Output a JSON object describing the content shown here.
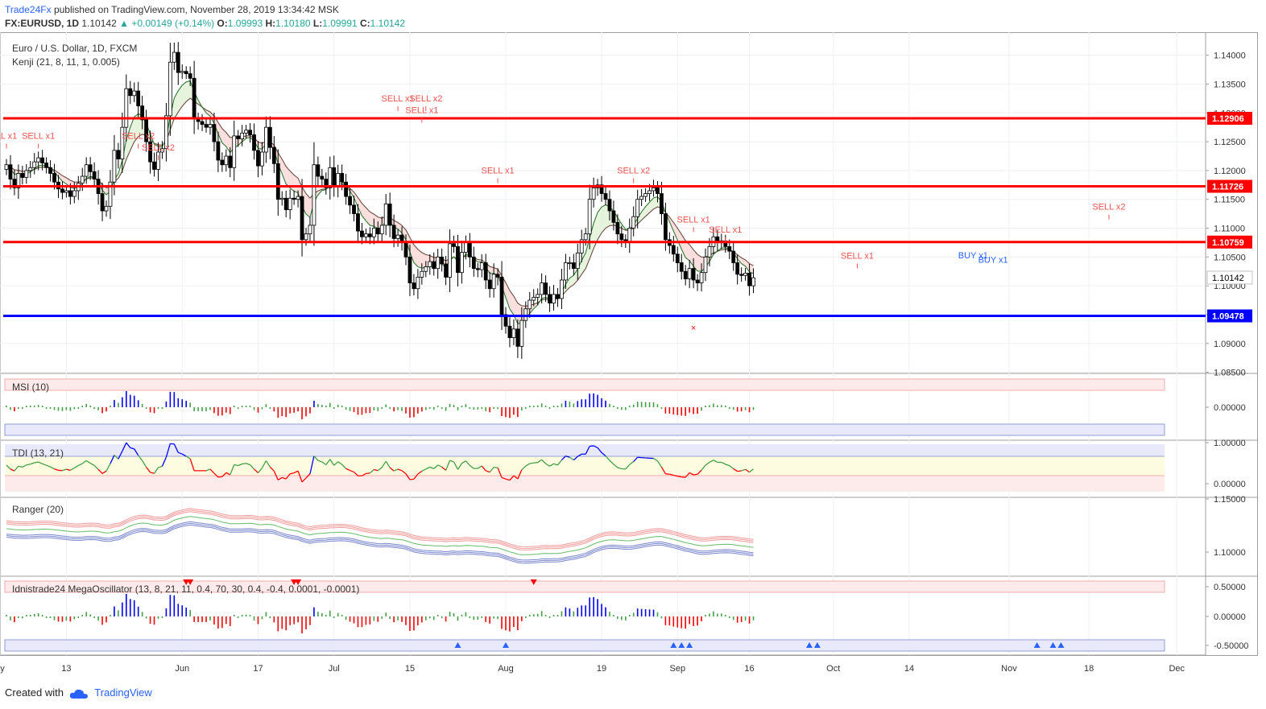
{
  "header": {
    "brand": "Trade24Fx",
    "published": "published on TradingView.com, November 28, 2019 13:34:42 MSK",
    "symbol": "FX:EURUSD, 1D",
    "last": "1.10142",
    "change": "+0.00149 (+0.14%)",
    "o_label": "O:",
    "o": "1.09993",
    "h_label": "H:",
    "h": "1.10180",
    "l_label": "L:",
    "l": "1.09991",
    "c_label": "C:",
    "c": "1.10142"
  },
  "footer": {
    "created_with": "Created with",
    "brand": "TradingView"
  },
  "colors": {
    "up": "#26a69a",
    "red": "#ff0000",
    "blue": "#0000ff",
    "pink": "#ef5350",
    "buy": "#2962ff"
  },
  "chart_data": [
    {
      "type": "candlestick",
      "title": "Euro / U.S. Dollar, 1D, FXCM",
      "indicator": "Kenji (21, 8, 11, 1, 0.005)",
      "x_ticks": [
        "ay",
        "13",
        "Jun",
        "17",
        "Jul",
        "15",
        "Aug",
        "19",
        "Sep",
        "16",
        "Oct",
        "14",
        "Nov",
        "18",
        "Dec"
      ],
      "y_ticks": [
        "1.14000",
        "1.13500",
        "1.13000",
        "1.12500",
        "1.12000",
        "1.11500",
        "1.11000",
        "1.10500",
        "1.10000",
        "1.09500",
        "1.09000",
        "1.08500"
      ],
      "ylim": [
        1.0848,
        1.144
      ],
      "levels": [
        {
          "value": 1.12906,
          "label": "1.12906",
          "color": "red"
        },
        {
          "value": 1.11726,
          "label": "1.11726",
          "color": "red"
        },
        {
          "value": 1.10759,
          "label": "1.10759",
          "color": "red"
        },
        {
          "value": 1.09478,
          "label": "1.09478",
          "color": "blue"
        }
      ],
      "last_price": {
        "value": 1.10142,
        "label": "1.10142"
      },
      "closes": [
        1.121,
        1.1185,
        1.117,
        1.1195,
        1.1188,
        1.12,
        1.1205,
        1.1215,
        1.1222,
        1.1213,
        1.1205,
        1.1195,
        1.118,
        1.1168,
        1.1162,
        1.1165,
        1.1155,
        1.1165,
        1.1178,
        1.119,
        1.121,
        1.1198,
        1.1185,
        1.116,
        1.113,
        1.1138,
        1.118,
        1.1235,
        1.122,
        1.1275,
        1.1342,
        1.133,
        1.1338,
        1.1312,
        1.1288,
        1.125,
        1.1215,
        1.1202,
        1.1232,
        1.1238,
        1.1295,
        1.1388,
        1.1405,
        1.137,
        1.1372,
        1.1368,
        1.136,
        1.129,
        1.1285,
        1.128,
        1.1275,
        1.128,
        1.125,
        1.1218,
        1.121,
        1.1225,
        1.1205,
        1.126,
        1.1255,
        1.1265,
        1.127,
        1.1262,
        1.1235,
        1.1208,
        1.1232,
        1.1275,
        1.124,
        1.1212,
        1.115,
        1.1152,
        1.1132,
        1.1152,
        1.115,
        1.1155,
        1.108,
        1.109,
        1.1105,
        1.121,
        1.119,
        1.1185,
        1.117,
        1.1205,
        1.1172,
        1.1195,
        1.118,
        1.1155,
        1.114,
        1.1125,
        1.1095,
        1.1085,
        1.109,
        1.1085,
        1.11,
        1.109,
        1.1105,
        1.1142,
        1.1105,
        1.1082,
        1.1088,
        1.1075,
        1.105,
        1.1005,
        1.0995,
        1.1015,
        1.1025,
        1.1033,
        1.1042,
        1.103,
        1.105,
        1.1038,
        1.1015,
        1.1073,
        1.1068,
        1.1023,
        1.1058,
        1.1075,
        1.105,
        1.103,
        1.1028,
        1.104,
        1.101,
        1.0995,
        1.102,
        1.1015,
        1.095,
        1.093,
        1.091,
        1.0925,
        1.0895,
        1.094,
        1.096,
        1.0975,
        1.098,
        1.0985,
        1.1005,
        1.0985,
        1.097,
        1.0985,
        1.0978,
        1.101,
        1.104,
        1.104,
        1.103,
        1.1057,
        1.108,
        1.109,
        1.115,
        1.117,
        1.1175,
        1.116,
        1.115,
        1.113,
        1.111,
        1.109,
        1.108,
        1.1075,
        1.11,
        1.112,
        1.115,
        1.1155,
        1.116,
        1.1165,
        1.117,
        1.116,
        1.1125,
        1.108,
        1.107,
        1.1055,
        1.104,
        1.1025,
        1.1012,
        1.103,
        1.101,
        1.1005,
        1.1023,
        1.105,
        1.1068,
        1.1085,
        1.1075,
        1.1078,
        1.1068,
        1.106,
        1.104,
        1.102,
        1.1018,
        1.1022,
        1.1,
        1.1014
      ]
    },
    {
      "type": "bar",
      "title": "MSI (10)",
      "y_ticks": [
        "0.00000"
      ]
    },
    {
      "type": "line",
      "title": "TDI (13, 21)",
      "y_ticks": [
        "1.00000",
        "0.00000"
      ]
    },
    {
      "type": "line",
      "title": "Ranger (20)",
      "y_ticks": [
        "1.15000",
        "1.10000"
      ]
    },
    {
      "type": "bar",
      "title": "Idnistrade24 MegaOscillator (13, 8, 21, 11, 0.4, 70, 30, 0.4, -0.4, 0.0001, -0.0001)",
      "y_ticks": [
        "0.50000",
        "0.00000",
        "-0.50000"
      ]
    }
  ],
  "signals": {
    "sell": [
      {
        "text": "LL x1",
        "i": 0,
        "price": 1.1255
      },
      {
        "text": "SELL x1",
        "i": 8,
        "price": 1.1255
      },
      {
        "text": "SELL x2",
        "i": 33,
        "price": 1.1255
      },
      {
        "text": "SELL x2",
        "i": 38,
        "price": 1.1235
      },
      {
        "text": "SELL x1",
        "i": 98,
        "price": 1.132
      },
      {
        "text": "SELL x2",
        "i": 105,
        "price": 1.132
      },
      {
        "text": "SELL x1",
        "i": 104,
        "price": 1.13
      },
      {
        "text": "SELL x1",
        "i": 123,
        "price": 1.1195
      },
      {
        "text": "SELL x2",
        "i": 157,
        "price": 1.1195
      },
      {
        "text": "SELL x1",
        "i": 172,
        "price": 1.111
      },
      {
        "text": "SELL x1",
        "i": 180,
        "price": 1.1092
      },
      {
        "text": "SELL x1",
        "i": 213,
        "price": 1.1047
      },
      {
        "text": "SELL x2",
        "i": 276,
        "price": 1.1132
      }
    ],
    "buy": [
      {
        "text": "BUY x1",
        "i": 242,
        "price": 1.1048
      },
      {
        "text": "BUY x1",
        "i": 247,
        "price": 1.104
      }
    ]
  }
}
